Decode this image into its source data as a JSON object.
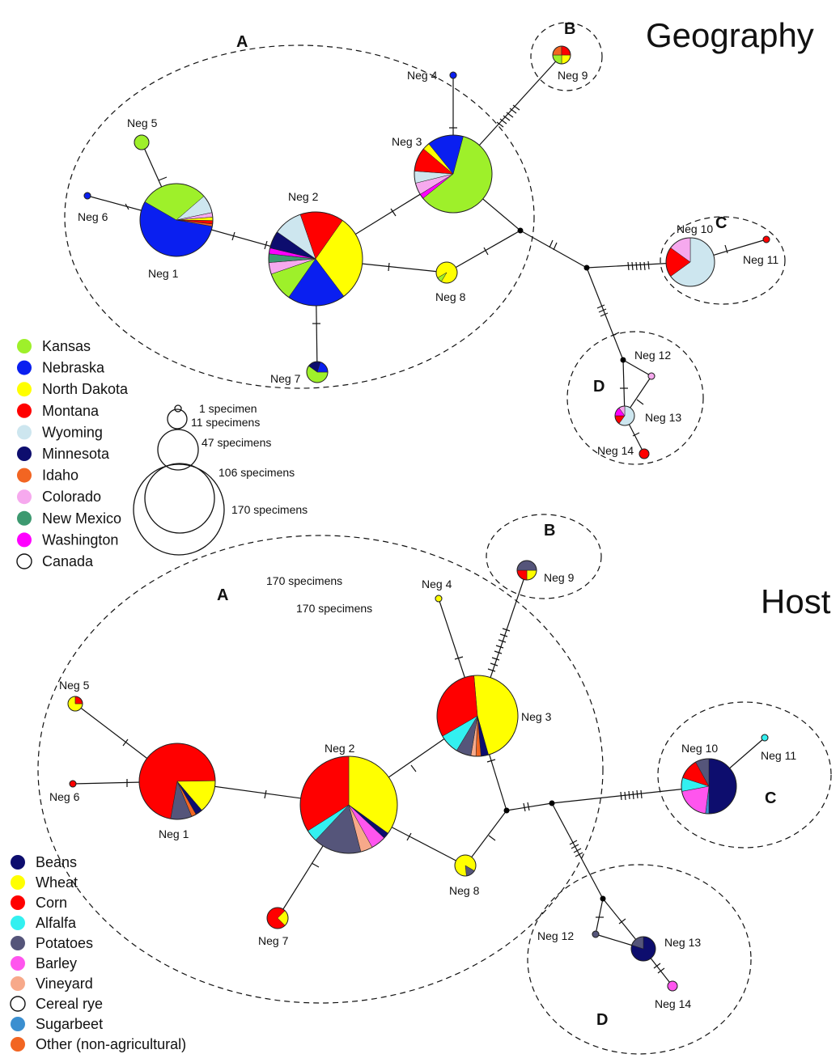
{
  "geography": {
    "title": "Geography",
    "groups": [
      "A",
      "B",
      "C",
      "D"
    ],
    "nodes": {
      "neg1": {
        "label": "Neg 1",
        "slices": [
          [
            "Nebraska",
            0.55
          ],
          [
            "Kansas",
            0.3
          ],
          [
            "Wyoming",
            0.08
          ],
          [
            "Colorado",
            0.02
          ],
          [
            "North Dakota",
            0.015
          ],
          [
            "Montana",
            0.015
          ],
          [
            "Idaho",
            0.01
          ]
        ]
      },
      "neg2": {
        "label": "Neg 2",
        "slices": [
          [
            "North Dakota",
            0.3
          ],
          [
            "Nebraska",
            0.2
          ],
          [
            "Kansas",
            0.1
          ],
          [
            "Colorado",
            0.04
          ],
          [
            "New Mexico",
            0.03
          ],
          [
            "Washington",
            0.02
          ],
          [
            "Minnesota",
            0.06
          ],
          [
            "Wyoming",
            0.1
          ],
          [
            "Montana",
            0.15
          ]
        ]
      },
      "neg3": {
        "label": "Neg 3",
        "slices": [
          [
            "Kansas",
            0.6
          ],
          [
            "Washington",
            0.02
          ],
          [
            "Colorado",
            0.05
          ],
          [
            "Wyoming",
            0.05
          ],
          [
            "Montana",
            0.1
          ],
          [
            "North Dakota",
            0.03
          ],
          [
            "Nebraska",
            0.15
          ]
        ]
      },
      "neg4": {
        "label": "Neg 4",
        "slices": [
          [
            "Nebraska",
            1.0
          ]
        ]
      },
      "neg5": {
        "label": "Neg 5",
        "slices": [
          [
            "Kansas",
            1.0
          ]
        ]
      },
      "neg6": {
        "label": "Neg 6",
        "slices": [
          [
            "Nebraska",
            1.0
          ]
        ]
      },
      "neg7": {
        "label": "Neg 7",
        "slices": [
          [
            "Kansas",
            0.6
          ],
          [
            "Minnesota",
            0.2
          ],
          [
            "Nebraska",
            0.2
          ]
        ]
      },
      "neg8": {
        "label": "Neg 8",
        "slices": [
          [
            "North Dakota",
            0.92
          ],
          [
            "Kansas",
            0.08
          ]
        ]
      },
      "neg9": {
        "label": "Neg 9",
        "slices": [
          [
            "North Dakota",
            0.25
          ],
          [
            "Kansas",
            0.25
          ],
          [
            "Idaho",
            0.25
          ],
          [
            "Montana",
            0.25
          ]
        ]
      },
      "neg10": {
        "label": "Neg 10",
        "slices": [
          [
            "Wyoming",
            0.65
          ],
          [
            "Montana",
            0.2
          ],
          [
            "Colorado",
            0.15
          ]
        ]
      },
      "neg11": {
        "label": "Neg 11",
        "slices": [
          [
            "Montana",
            1.0
          ]
        ]
      },
      "neg12": {
        "label": "Neg 12",
        "slices": [
          [
            "Colorado",
            1.0
          ]
        ]
      },
      "neg13": {
        "label": "Neg 13",
        "slices": [
          [
            "Wyoming",
            0.6
          ],
          [
            "Montana",
            0.15
          ],
          [
            "Washington",
            0.15
          ],
          [
            "Colorado",
            0.1
          ]
        ]
      },
      "neg14": {
        "label": "Neg 14",
        "slices": [
          [
            "Montana",
            1.0
          ]
        ]
      }
    },
    "legend": [
      {
        "label": "Kansas",
        "color": "#9ef02a"
      },
      {
        "label": "Nebraska",
        "color": "#0a1ff0"
      },
      {
        "label": "North Dakota",
        "color": "#ffff00"
      },
      {
        "label": "Montana",
        "color": "#ff0000"
      },
      {
        "label": "Wyoming",
        "color": "#cde6ef"
      },
      {
        "label": "Minnesota",
        "color": "#0d0d6e"
      },
      {
        "label": "Idaho",
        "color": "#f26522"
      },
      {
        "label": "Colorado",
        "color": "#f6a9ee"
      },
      {
        "label": "New Mexico",
        "color": "#3d9970"
      },
      {
        "label": "Washington",
        "color": "#ff00ff"
      },
      {
        "label": "Canada",
        "color": "#ffffff"
      }
    ],
    "sizes": [
      "1 specimen",
      "11 specimens",
      "47 specimens",
      "106 specimens",
      "170 specimens"
    ]
  },
  "host": {
    "title": "Host",
    "groups": [
      "A",
      "B",
      "C",
      "D"
    ],
    "extra_labels": [
      "170 specimens",
      "170 specimens"
    ],
    "nodes": {
      "neg1": {
        "label": "Neg 1",
        "slices": [
          [
            "Corn",
            0.72
          ],
          [
            "Wheat",
            0.14
          ],
          [
            "Beans",
            0.03
          ],
          [
            "Other (non-agricultural)",
            0.02
          ],
          [
            "Potatoes",
            0.09
          ]
        ]
      },
      "neg2": {
        "label": "Neg 2",
        "slices": [
          [
            "Wheat",
            0.35
          ],
          [
            "Beans",
            0.02
          ],
          [
            "Barley",
            0.05
          ],
          [
            "Vineyard",
            0.04
          ],
          [
            "Potatoes",
            0.16
          ],
          [
            "Alfalfa",
            0.04
          ],
          [
            "Corn",
            0.34
          ]
        ]
      },
      "neg3": {
        "label": "Neg 3",
        "slices": [
          [
            "Wheat",
            0.47
          ],
          [
            "Beans",
            0.03
          ],
          [
            "Other (non-agricultural)",
            0.02
          ],
          [
            "Vineyard",
            0.02
          ],
          [
            "Potatoes",
            0.06
          ],
          [
            "Alfalfa",
            0.08
          ],
          [
            "Corn",
            0.32
          ]
        ]
      },
      "neg4": {
        "label": "Neg 4",
        "slices": [
          [
            "Wheat",
            1.0
          ]
        ]
      },
      "neg5": {
        "label": "Neg 5",
        "slices": [
          [
            "Wheat",
            0.75
          ],
          [
            "Corn",
            0.25
          ]
        ]
      },
      "neg6": {
        "label": "Neg 6",
        "slices": [
          [
            "Corn",
            1.0
          ]
        ]
      },
      "neg7": {
        "label": "Neg 7",
        "slices": [
          [
            "Corn",
            0.75
          ],
          [
            "Wheat",
            0.25
          ]
        ]
      },
      "neg8": {
        "label": "Neg 8",
        "slices": [
          [
            "Potatoes",
            0.15
          ],
          [
            "Wheat",
            0.85
          ]
        ]
      },
      "neg9": {
        "label": "Neg 9",
        "slices": [
          [
            "Wheat",
            0.25
          ],
          [
            "Corn",
            0.25
          ],
          [
            "Potatoes",
            0.5
          ]
        ]
      },
      "neg10": {
        "label": "Neg 10",
        "slices": [
          [
            "Beans",
            0.5
          ],
          [
            "Sugarbeet",
            0.02
          ],
          [
            "Barley",
            0.2
          ],
          [
            "Alfalfa",
            0.08
          ],
          [
            "Corn",
            0.12
          ],
          [
            "Potatoes",
            0.08
          ]
        ]
      },
      "neg11": {
        "label": "Neg 11",
        "slices": [
          [
            "Alfalfa",
            1.0
          ]
        ]
      },
      "neg12": {
        "label": "Neg 12",
        "slices": [
          [
            "Potatoes",
            1.0
          ]
        ]
      },
      "neg13": {
        "label": "Neg 13",
        "slices": [
          [
            "Beans",
            0.8
          ],
          [
            "Potatoes",
            0.2
          ]
        ]
      },
      "neg14": {
        "label": "Neg 14",
        "slices": [
          [
            "Barley",
            1.0
          ]
        ]
      }
    },
    "legend": [
      {
        "label": "Beans",
        "color": "#0d0d6e"
      },
      {
        "label": "Wheat",
        "color": "#ffff00"
      },
      {
        "label": "Corn",
        "color": "#ff0000"
      },
      {
        "label": "Alfalfa",
        "color": "#33f0f0"
      },
      {
        "label": "Potatoes",
        "color": "#55557a"
      },
      {
        "label": "Barley",
        "color": "#ff55ee"
      },
      {
        "label": "Vineyard",
        "color": "#f7a98a"
      },
      {
        "label": "Cereal rye",
        "color": "#ffffff"
      },
      {
        "label": "Sugarbeet",
        "color": "#3b8fd0"
      },
      {
        "label": "Other (non-agricultural)",
        "color": "#f26522"
      }
    ]
  }
}
